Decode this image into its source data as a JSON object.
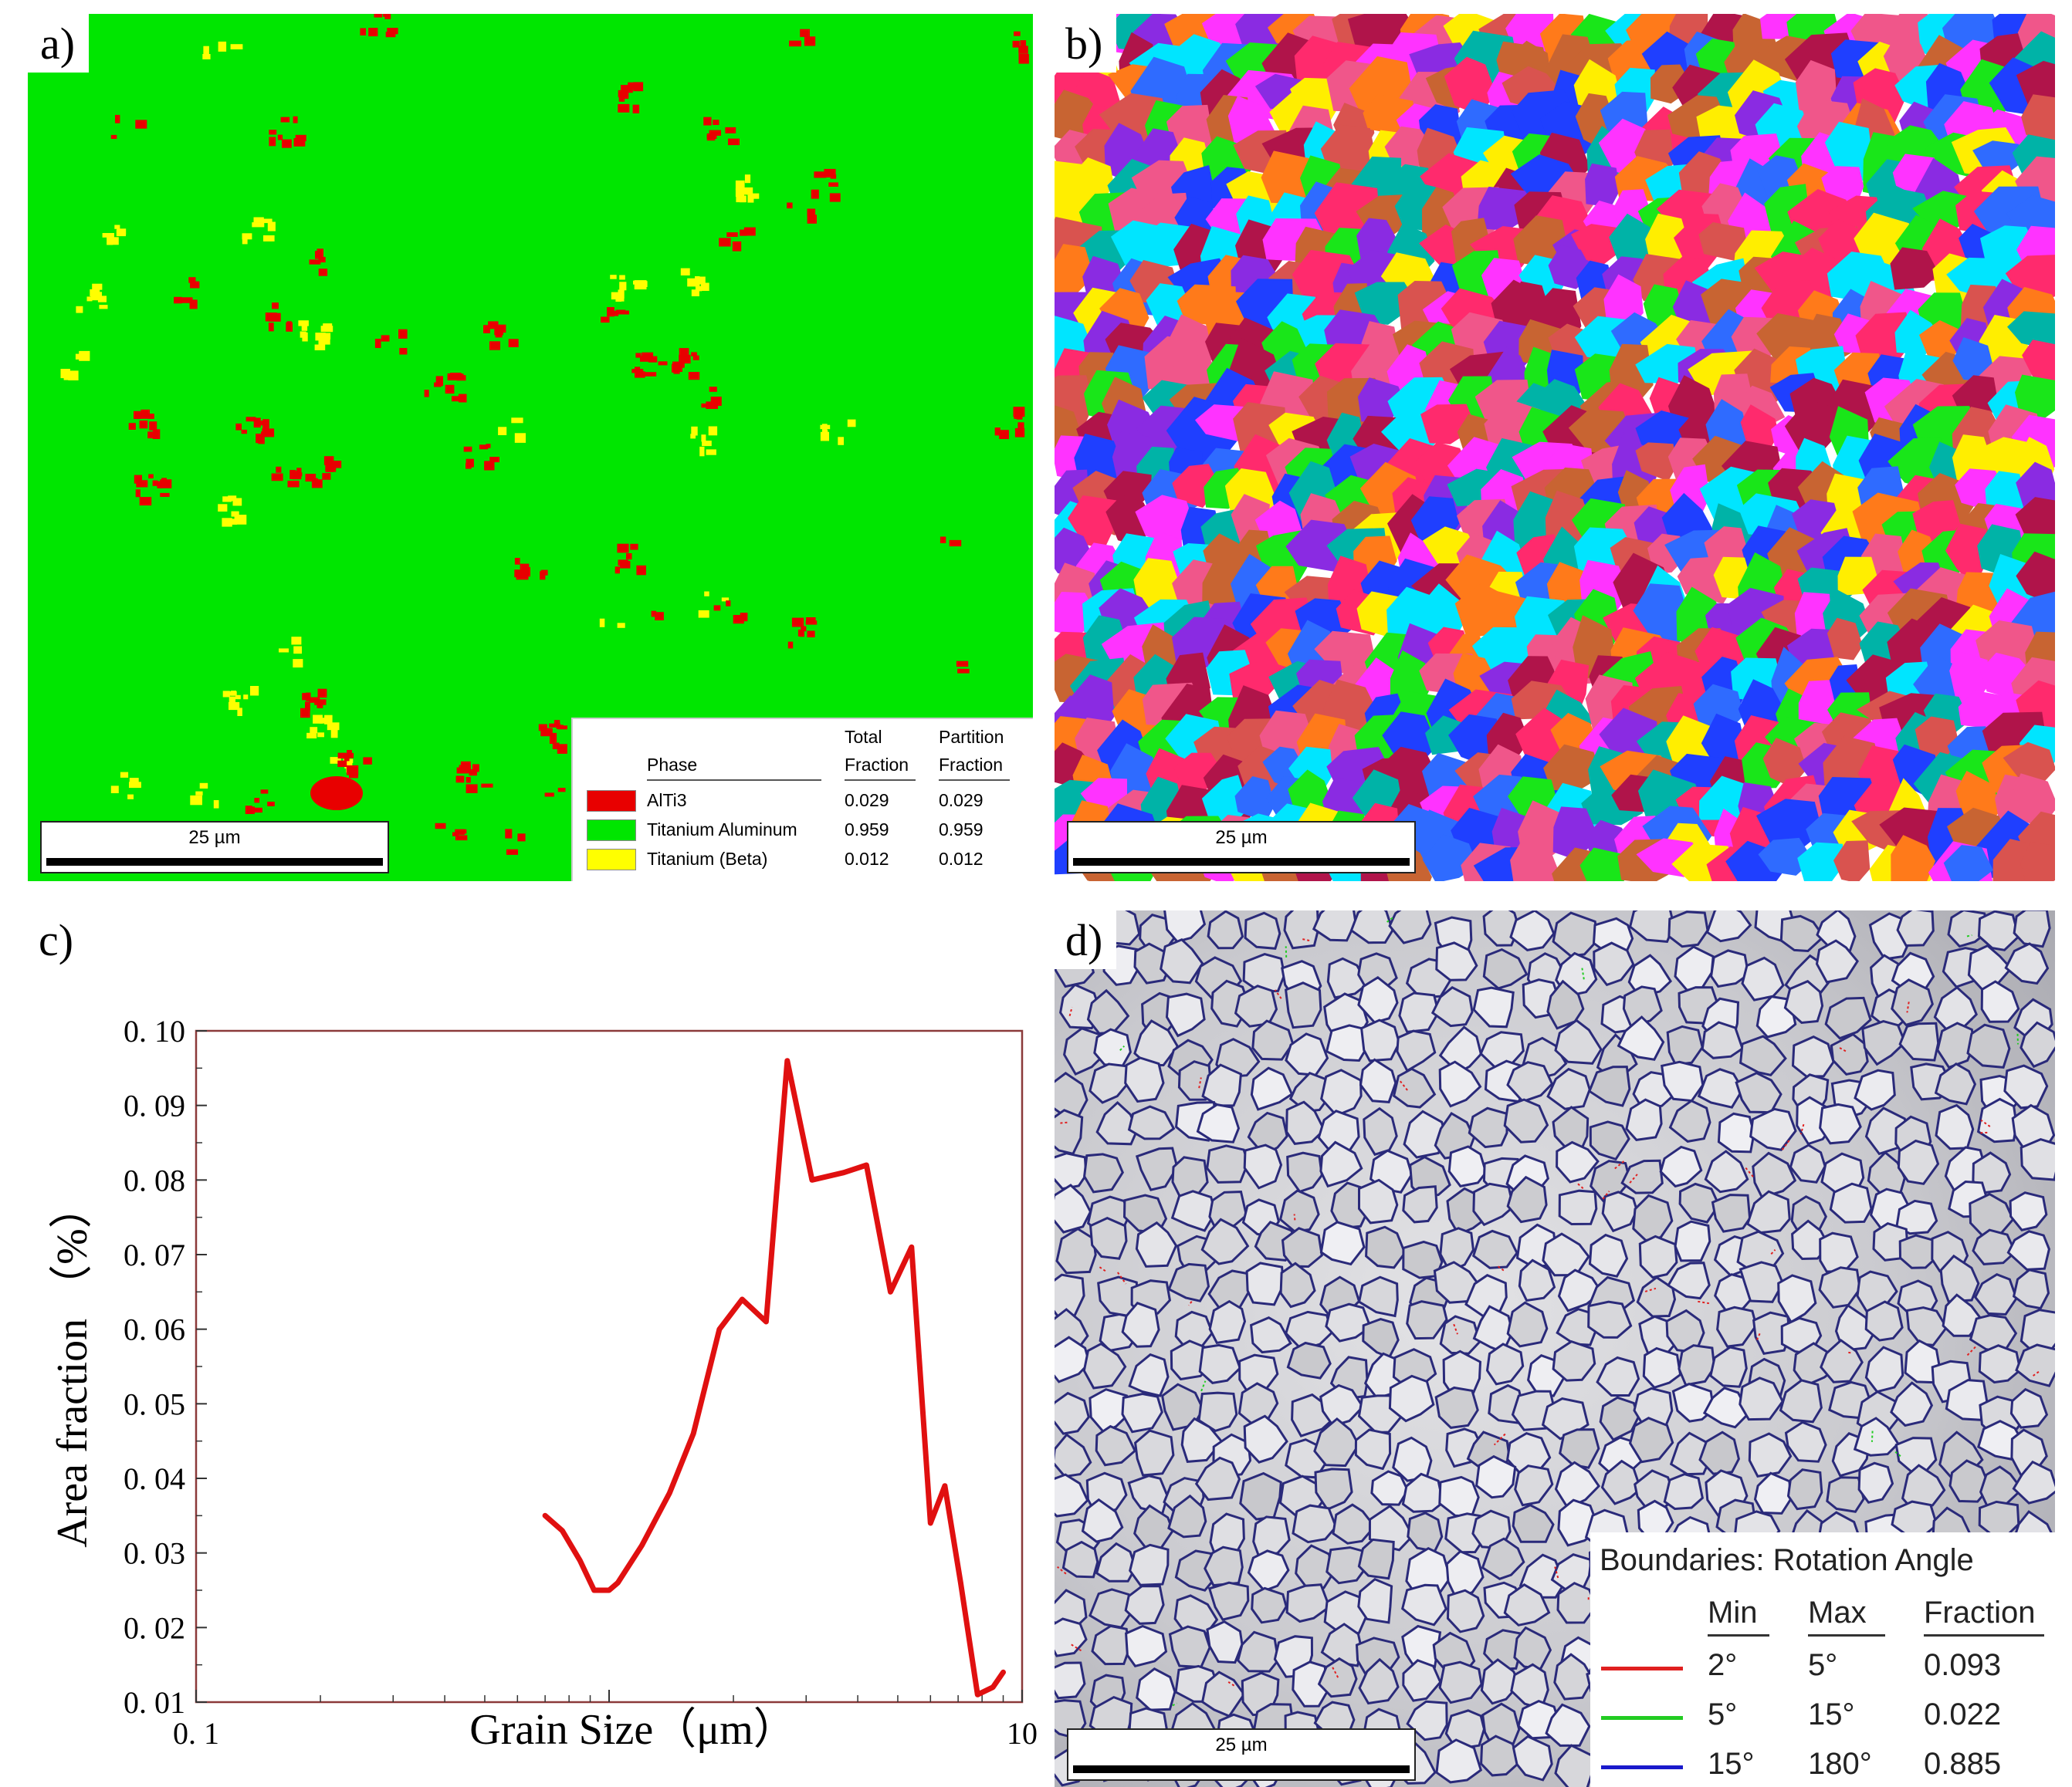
{
  "panel_a": {
    "letter": "a)",
    "scale_bar": "25 µm",
    "colors": {
      "background": "#00e600",
      "red": "#e80000",
      "yellow": "#ffff00"
    },
    "legend": {
      "col_phase": "Phase",
      "col_total_1": "Total",
      "col_total_2": "Fraction",
      "col_partition_1": "Partition",
      "col_partition_2": "Fraction",
      "rows": [
        {
          "name": "AlTi3",
          "color": "#e80000",
          "total": "0.029",
          "partition": "0.029"
        },
        {
          "name": "Titanium Aluminum",
          "color": "#00e600",
          "total": "0.959",
          "partition": "0.959"
        },
        {
          "name": "Titanium (Beta)",
          "color": "#ffff00",
          "total": "0.012",
          "partition": "0.012"
        }
      ]
    }
  },
  "panel_b": {
    "letter": "b)",
    "scale_bar": "25 µm",
    "palette": [
      "#ff2a6d",
      "#1f3fff",
      "#ffee00",
      "#00e5ff",
      "#ff33ff",
      "#ff7a1a",
      "#19e619",
      "#b0144a",
      "#8a2be2",
      "#d9534f",
      "#00b3a7",
      "#f0568a",
      "#2f6bff",
      "#c86432"
    ]
  },
  "panel_c": {
    "letter": "c)",
    "chart_data": {
      "type": "line",
      "xlabel": "Grain Size（μm）",
      "ylabel": "Area fraction （%）",
      "xscale": "log",
      "xlim": [
        0.1,
        10
      ],
      "ylim": [
        0.01,
        0.1
      ],
      "x_ticks": [
        "0. 1",
        "1",
        "10"
      ],
      "y_ticks": [
        "0. 01",
        "0. 02",
        "0. 03",
        "0. 04",
        "0. 05",
        "0. 06",
        "0. 07",
        "0. 08",
        "0. 09",
        "0. 10"
      ],
      "line_color": "#e01010",
      "x": [
        0.7,
        0.77,
        0.85,
        0.92,
        1.0,
        1.05,
        1.2,
        1.4,
        1.6,
        1.85,
        2.1,
        2.4,
        2.7,
        3.1,
        3.7,
        4.2,
        4.8,
        5.4,
        6.0,
        6.5,
        7.1,
        7.8,
        8.5,
        9.0
      ],
      "y": [
        0.035,
        0.033,
        0.029,
        0.025,
        0.025,
        0.026,
        0.031,
        0.038,
        0.046,
        0.06,
        0.064,
        0.061,
        0.096,
        0.08,
        0.081,
        0.082,
        0.065,
        0.071,
        0.034,
        0.039,
        0.026,
        0.011,
        0.012,
        0.014
      ]
    }
  },
  "panel_d": {
    "letter": "d)",
    "scale_bar": "25 µm",
    "legend": {
      "title": "Boundaries: Rotation Angle",
      "col_min": "Min",
      "col_max": "Max",
      "col_fraction": "Fraction",
      "rows": [
        {
          "color": "#e02020",
          "min": "2°",
          "max": "5°",
          "fraction": "0.093"
        },
        {
          "color": "#22cc22",
          "min": "5°",
          "max": "15°",
          "fraction": "0.022"
        },
        {
          "color": "#1a1acc",
          "min": "15°",
          "max": "180°",
          "fraction": "0.885"
        }
      ]
    }
  }
}
